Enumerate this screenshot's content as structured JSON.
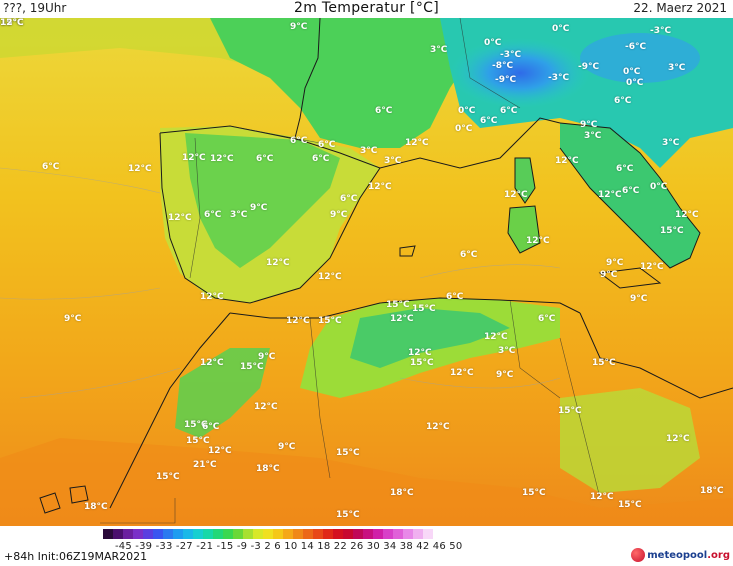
{
  "header": {
    "left_text": "???, 19Uhr",
    "title": "2m Temperatur [°C]",
    "date": "22. Maerz 2021"
  },
  "footer": {
    "init": "+84h  Init:06Z19MAR2021",
    "logo_main": "meteopool",
    "logo_suffix": ".org"
  },
  "colorbar": {
    "ticks": "-45 -39 -33 -27 -21 -15 -9 -3 2 6 10 14 18 22 26 30 34 38 42 46 50",
    "colors": [
      "#2a0a3a",
      "#4b0f6e",
      "#6b1fa0",
      "#7a2fc8",
      "#5a3ee0",
      "#3a55f0",
      "#2b7af0",
      "#1e9cf0",
      "#1ab8e8",
      "#17cfd0",
      "#17d8a8",
      "#22d878",
      "#3ad850",
      "#6ad838",
      "#a8e030",
      "#d8e828",
      "#f0e020",
      "#f5c818",
      "#f5a818",
      "#f08818",
      "#ec6818",
      "#e84818",
      "#e02818",
      "#d41020",
      "#c80830",
      "#c00858",
      "#c81080",
      "#d020a8",
      "#d840c8",
      "#e060d8",
      "#e888e8",
      "#f0b0f0",
      "#f8d8f8"
    ]
  },
  "map_labels": [
    "9°C",
    "3°C",
    "0°C",
    "-3°C",
    "-8°C",
    "-9°C",
    "0°C",
    "-6°C",
    "-3°C",
    "-3°C",
    "0°C",
    "-9°C",
    "0°C",
    "3°C",
    "6°C",
    "6°C",
    "0°C",
    "6°C",
    "0°C",
    "6°C",
    "9°C",
    "3°C",
    "3°C",
    "6°C",
    "6°C",
    "12°C",
    "3°C",
    "3°C",
    "6°C",
    "6°C",
    "12°C",
    "12°C",
    "6°C",
    "12°C",
    "12°C",
    "6°C",
    "0°C",
    "6°C",
    "12°C",
    "12°C",
    "12°C",
    "6°C",
    "3°C",
    "9°C",
    "9°C",
    "6°C",
    "12°C",
    "12°C",
    "15°C",
    "12°C",
    "6°C",
    "9°C",
    "9°C",
    "12°C",
    "12°C",
    "12°C",
    "9°C",
    "6°C",
    "12°C",
    "12°C",
    "15°C",
    "15°C",
    "15°C",
    "12°C",
    "9°C",
    "6°C",
    "12°C",
    "3°C",
    "12°C",
    "9°C",
    "12°C",
    "15°C",
    "15°C",
    "12°C",
    "9°C",
    "15°C",
    "15°C",
    "12°C",
    "12°C",
    "12°C",
    "15°C",
    "6°C",
    "15°C",
    "12°C",
    "9°C",
    "15°C",
    "21°C",
    "18°C",
    "15°C",
    "18°C",
    "15°C",
    "12°C",
    "15°C",
    "18°C",
    "18°C",
    "15°C",
    "15°C",
    "12°C",
    "12°C"
  ]
}
